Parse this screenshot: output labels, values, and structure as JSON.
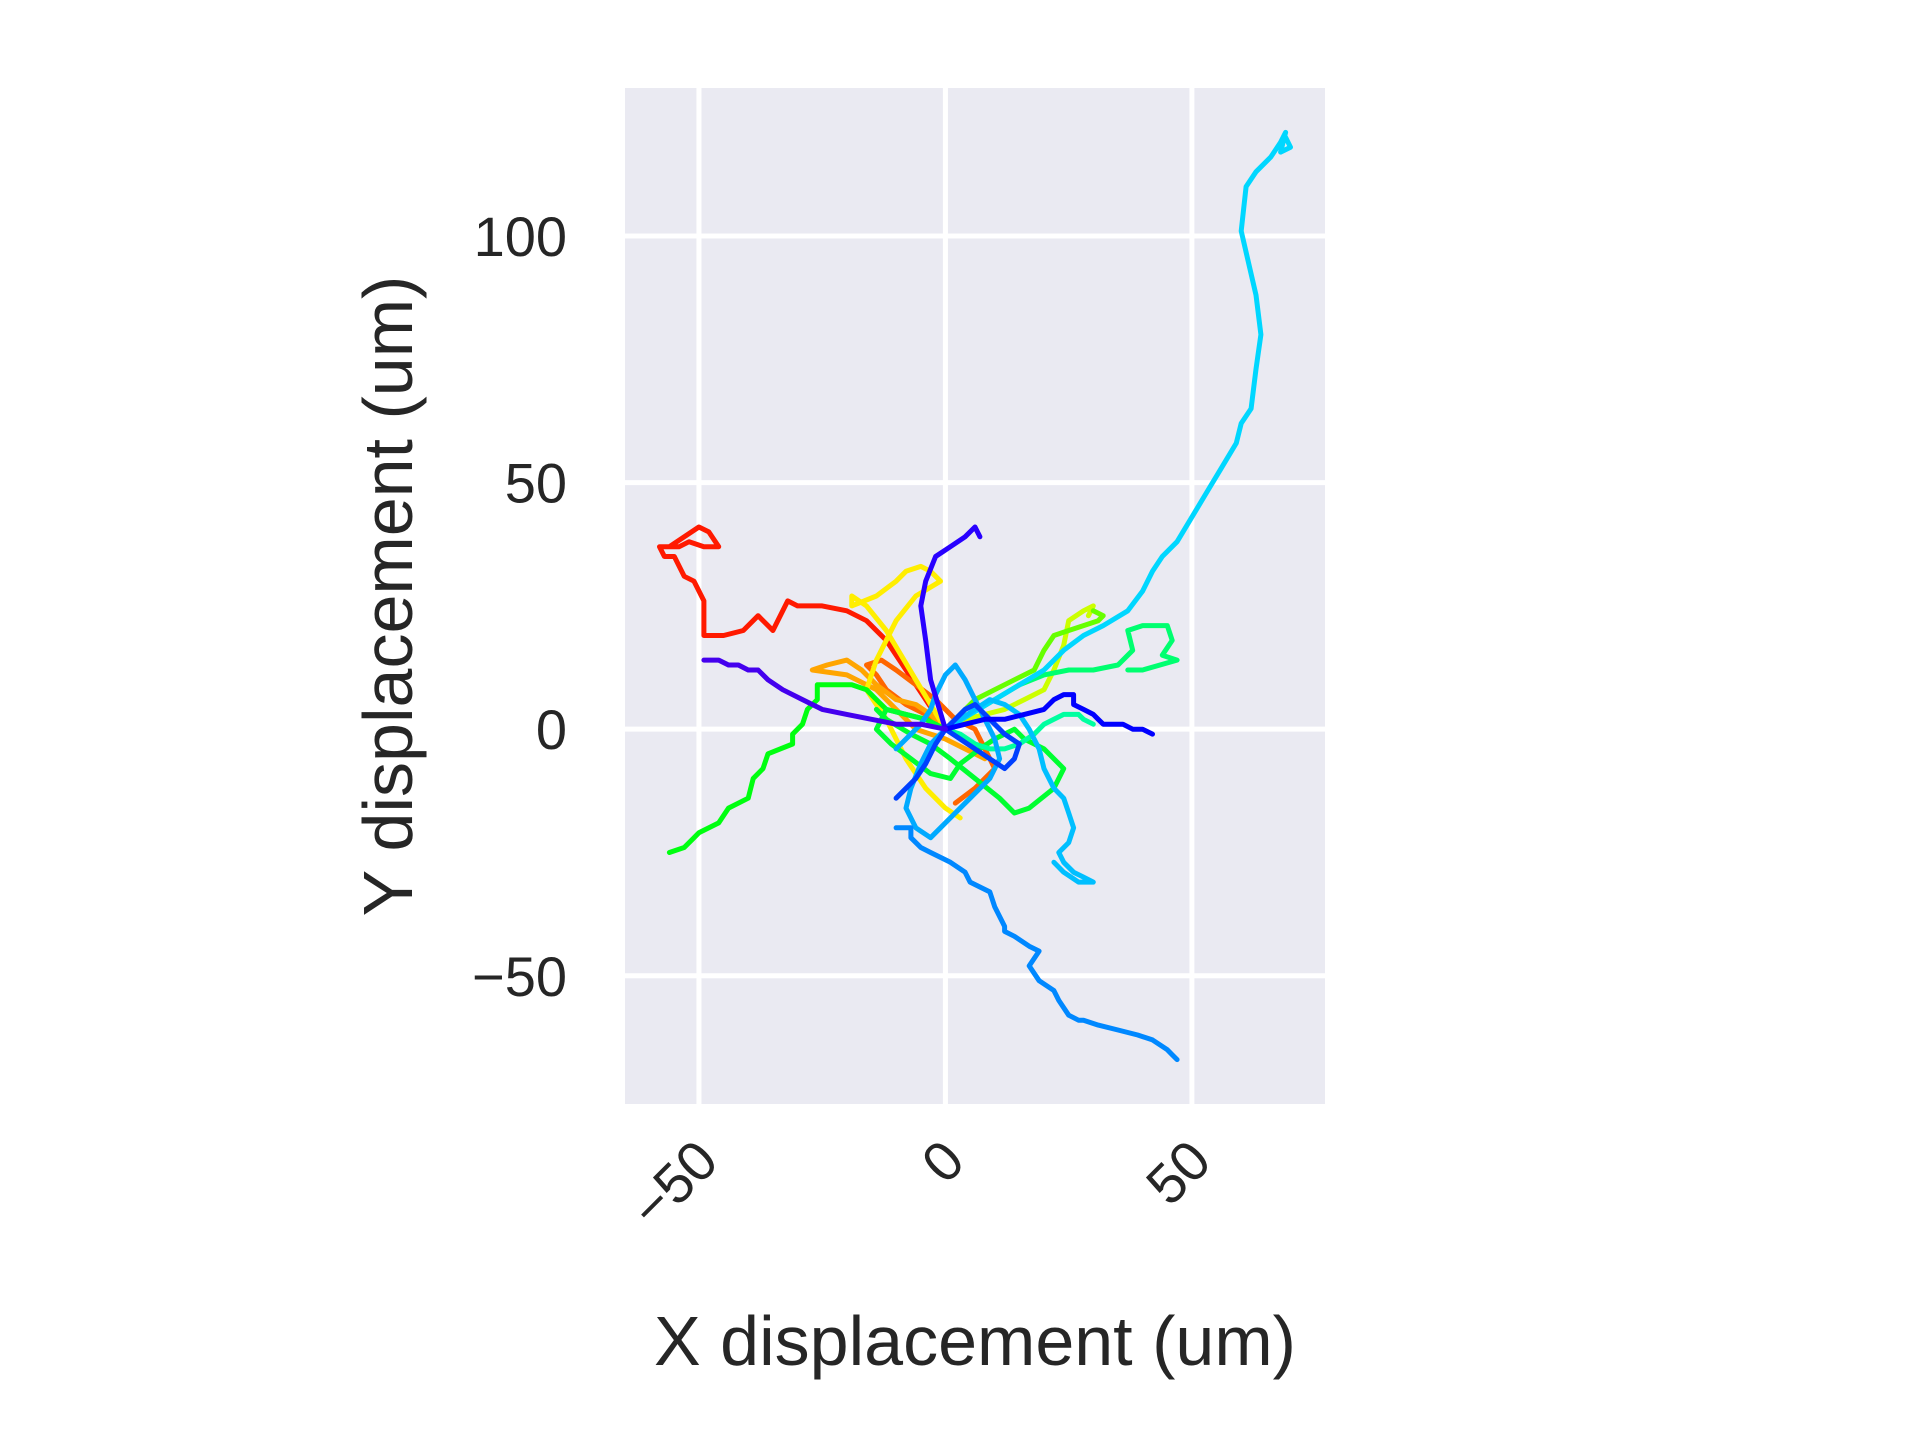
{
  "chart_data": {
    "type": "line",
    "xlabel": "X displacement (um)",
    "ylabel": "Y displacement (um)",
    "xlim": [
      -65,
      77
    ],
    "ylim": [
      -76,
      130
    ],
    "xticks": [
      -50,
      0,
      50
    ],
    "xtick_labels": [
      "−50",
      "0",
      "50"
    ],
    "yticks": [
      -50,
      0,
      50,
      100
    ],
    "ytick_labels": [
      "−50",
      "0",
      "50",
      "100"
    ],
    "grid": true,
    "background_color": "#eaeaf2",
    "grid_color": "#ffffff",
    "colormap": "jet",
    "series": [
      {
        "color": "#ff1a00",
        "x": [
          0,
          -4,
          -8,
          -12,
          -16,
          -20,
          -25,
          -30,
          -32,
          -35,
          -38,
          -41,
          -45,
          -49,
          -49,
          -51,
          -53,
          -55,
          -57,
          -58,
          -54,
          -52,
          -49,
          -46,
          -48,
          -50,
          -56
        ],
        "y": [
          0,
          6,
          12,
          18,
          22,
          24,
          25,
          25,
          26,
          20,
          23,
          20,
          19,
          19,
          26,
          30,
          31,
          35,
          35,
          37,
          37,
          38,
          37,
          37,
          40,
          41,
          37
        ]
      },
      {
        "color": "#ff6600",
        "x": [
          0,
          -4,
          -8,
          -12,
          -14,
          -16,
          -13,
          -10,
          -6,
          -2,
          2,
          6,
          8,
          10,
          6,
          2
        ],
        "y": [
          0,
          3,
          5,
          8,
          11,
          13,
          14,
          12,
          9,
          6,
          2,
          0,
          -4,
          -8,
          -12,
          -15
        ]
      },
      {
        "color": "#ffa500",
        "x": [
          0,
          -3,
          -6,
          -10,
          -14,
          -17,
          -20,
          -24,
          -27,
          -20,
          -14,
          -10,
          -6,
          0,
          4,
          8
        ],
        "y": [
          0,
          3,
          5,
          6,
          9,
          12,
          14,
          13,
          12,
          11,
          8,
          4,
          0,
          -2,
          -4,
          -6
        ]
      },
      {
        "color": "#ffee00",
        "x": [
          0,
          -3,
          -6,
          -9,
          -12,
          -16,
          -19,
          -19,
          -14,
          -10,
          -8,
          -5,
          -3,
          -1,
          -6,
          -10,
          -14,
          -16,
          -12,
          -8,
          -4,
          0,
          3
        ],
        "y": [
          0,
          5,
          10,
          15,
          20,
          25,
          27,
          25,
          27,
          30,
          32,
          33,
          32,
          30,
          27,
          22,
          14,
          8,
          2,
          -6,
          -12,
          -16,
          -18
        ]
      },
      {
        "color": "#ccff00",
        "x": [
          0,
          4,
          8,
          12,
          16,
          20,
          22,
          24,
          25,
          28,
          30,
          29
        ],
        "y": [
          0,
          2,
          3,
          4,
          6,
          8,
          12,
          17,
          22,
          24,
          25,
          23
        ]
      },
      {
        "color": "#66ff00",
        "x": [
          0,
          3,
          6,
          10,
          14,
          18,
          20,
          22,
          25,
          28,
          31,
          32,
          30
        ],
        "y": [
          0,
          3,
          6,
          8,
          10,
          12,
          16,
          19,
          20,
          21,
          22,
          23,
          24
        ]
      },
      {
        "color": "#00ff10",
        "x": [
          0,
          -4,
          -8,
          -12,
          -14,
          -16,
          -19,
          -22,
          -24,
          -26,
          -26,
          -28,
          -29,
          -31,
          -31,
          -36,
          -37,
          -39,
          -40,
          -44,
          -46,
          -50,
          -51,
          -53,
          -56
        ],
        "y": [
          0,
          2,
          3,
          4,
          6,
          8,
          9,
          9,
          9,
          9,
          6,
          4,
          1,
          -1,
          -3,
          -5,
          -8,
          -10,
          -14,
          -16,
          -19,
          -21,
          -22,
          -24,
          -25
        ]
      },
      {
        "color": "#00ff30",
        "x": [
          0,
          -4,
          -8,
          -12,
          -14,
          -11,
          -7,
          -3,
          1,
          3,
          7,
          10,
          14,
          16,
          20,
          24,
          22,
          17,
          14,
          11,
          6,
          1,
          -3,
          -7,
          -12,
          -14
        ],
        "y": [
          0,
          2,
          3,
          4,
          0,
          -3,
          -6,
          -9,
          -10,
          -7,
          -4,
          -2,
          0,
          -2,
          -4,
          -8,
          -12,
          -16,
          -17,
          -14,
          -10,
          -6,
          -3,
          -1,
          2,
          4
        ]
      },
      {
        "color": "#00ff70",
        "x": [
          0,
          5,
          10,
          15,
          20,
          25,
          30,
          35,
          38,
          37,
          40,
          45,
          46,
          44,
          47,
          40,
          37
        ],
        "y": [
          0,
          3,
          6,
          9,
          11,
          12,
          12,
          13,
          16,
          20,
          21,
          21,
          18,
          15,
          14,
          12,
          12
        ]
      },
      {
        "color": "#00ffa0",
        "x": [
          0,
          3,
          6,
          9,
          12,
          15,
          18,
          20,
          22,
          24,
          26,
          27,
          28,
          30
        ],
        "y": [
          0,
          -1,
          -3,
          -4,
          -4,
          -3,
          -1,
          1,
          2,
          3,
          3,
          3,
          2,
          1
        ]
      },
      {
        "color": "#00d7ff",
        "x": [
          0,
          5,
          10,
          15,
          20,
          24,
          28,
          32,
          37,
          40,
          42,
          44,
          47,
          50,
          53,
          56,
          59,
          60,
          62,
          63,
          64,
          63,
          60,
          61,
          63,
          66,
          68,
          69,
          68,
          70,
          69
        ],
        "y": [
          0,
          3,
          6,
          9,
          12,
          16,
          19,
          21,
          24,
          28,
          32,
          35,
          38,
          43,
          48,
          53,
          58,
          62,
          65,
          73,
          80,
          88,
          101,
          110,
          113,
          116,
          119,
          121,
          117,
          118,
          120
        ]
      },
      {
        "color": "#00bfff",
        "x": [
          0,
          3,
          6,
          9,
          12,
          15,
          17,
          19,
          20,
          22,
          24,
          25,
          26,
          25,
          23,
          24,
          26,
          28,
          30,
          27,
          24,
          22
        ],
        "y": [
          0,
          2,
          4,
          6,
          5,
          3,
          0,
          -4,
          -8,
          -12,
          -14,
          -17,
          -20,
          -23,
          -25,
          -27,
          -29,
          -30,
          -31,
          -31,
          -29,
          -27
        ]
      },
      {
        "color": "#00aaff",
        "x": [
          0,
          -3,
          -5,
          -7,
          -8,
          -6,
          -3,
          1,
          5,
          9,
          11,
          10,
          8,
          6,
          4,
          2,
          0,
          -2,
          -3,
          -5,
          -8,
          -10
        ],
        "y": [
          0,
          -3,
          -7,
          -12,
          -16,
          -20,
          -22,
          -18,
          -14,
          -10,
          -6,
          -2,
          2,
          6,
          10,
          13,
          11,
          7,
          4,
          1,
          -2,
          -4
        ]
      },
      {
        "color": "#0088ff",
        "x": [
          -10,
          -7,
          -7,
          -5,
          -3,
          1,
          4,
          5,
          7,
          9,
          10,
          12,
          12,
          14,
          17,
          19,
          17,
          19,
          22,
          23,
          25,
          27,
          28,
          31,
          35,
          39,
          42,
          45,
          46,
          47
        ],
        "y": [
          -20,
          -20,
          -22,
          -24,
          -25,
          -27,
          -29,
          -31,
          -32,
          -33,
          -36,
          -40,
          -41,
          -42,
          -44,
          -45,
          -48,
          -51,
          -53,
          -55,
          -58,
          -59,
          -59,
          -60,
          -61,
          -62,
          -63,
          -65,
          -66,
          -67
        ]
      },
      {
        "color": "#0040ff",
        "x": [
          0,
          3,
          6,
          9,
          12,
          14,
          15,
          12,
          10,
          8,
          6,
          4,
          2,
          0,
          -2,
          -4,
          -6,
          -8,
          -10
        ],
        "y": [
          0,
          -2,
          -4,
          -6,
          -8,
          -6,
          -3,
          -1,
          1,
          3,
          5,
          4,
          2,
          0,
          -3,
          -7,
          -10,
          -12,
          -14
        ]
      },
      {
        "color": "#0000ff",
        "x": [
          0,
          4,
          8,
          12,
          16,
          20,
          22,
          24,
          26,
          26,
          28,
          30,
          31,
          32,
          34,
          36,
          38,
          39,
          40,
          42
        ],
        "y": [
          0,
          1,
          2,
          2,
          3,
          4,
          6,
          7,
          7,
          5,
          4,
          3,
          2,
          1,
          1,
          1,
          0,
          0,
          0,
          -1
        ]
      },
      {
        "color": "#2800ff",
        "x": [
          0,
          -3,
          -4,
          -5,
          -4,
          -2,
          1,
          4,
          6,
          7
        ],
        "y": [
          0,
          10,
          18,
          25,
          30,
          35,
          37,
          39,
          41,
          39
        ]
      },
      {
        "color": "#4400ee",
        "x": [
          0,
          -5,
          -10,
          -15,
          -20,
          -25,
          -29,
          -33,
          -36,
          -38,
          -40,
          -42,
          -44,
          -46,
          -49
        ],
        "y": [
          0,
          1,
          1,
          2,
          3,
          4,
          6,
          8,
          10,
          12,
          12,
          13,
          13,
          14,
          14
        ]
      }
    ]
  }
}
